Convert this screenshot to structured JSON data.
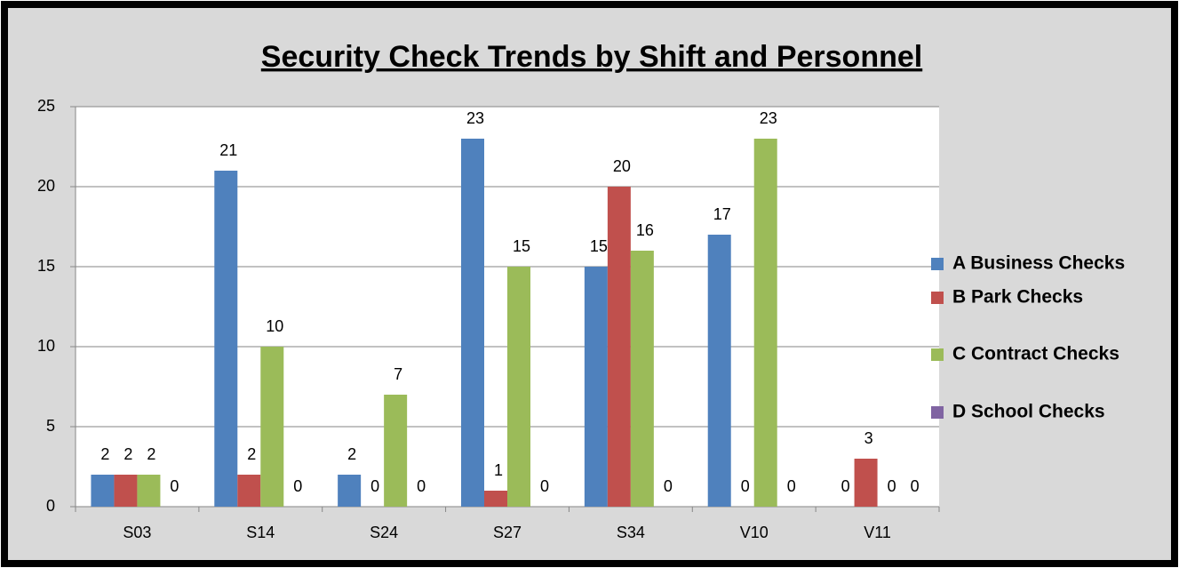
{
  "chart_data": {
    "type": "bar",
    "title": "Security Check Trends by Shift and Personnel",
    "categories": [
      "S03",
      "S14",
      "S24",
      "S27",
      "S34",
      "V10",
      "V11"
    ],
    "series": [
      {
        "name": "A Business Checks",
        "color": "#4f81bd",
        "values": [
          2,
          21,
          2,
          23,
          15,
          17,
          0
        ]
      },
      {
        "name": "B Park Checks",
        "color": "#c0504d",
        "values": [
          2,
          2,
          0,
          1,
          20,
          0,
          3
        ]
      },
      {
        "name": "C Contract Checks",
        "color": "#9bbb59",
        "values": [
          2,
          10,
          7,
          15,
          16,
          23,
          0
        ]
      },
      {
        "name": "D School Checks",
        "color": "#8064a2",
        "values": [
          0,
          0,
          0,
          0,
          0,
          0,
          0
        ]
      }
    ],
    "ylim": [
      0,
      25
    ],
    "yticks": [
      0,
      5,
      10,
      15,
      20,
      25
    ],
    "grid": true,
    "legend": "right"
  }
}
